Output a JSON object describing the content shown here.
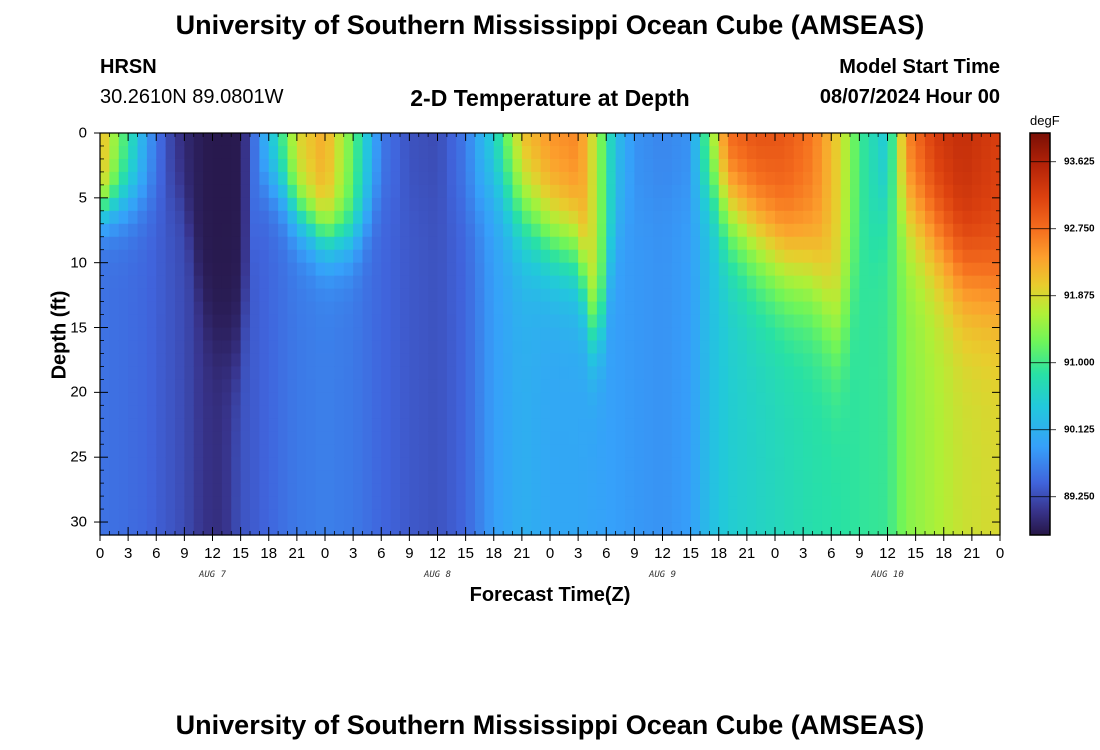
{
  "header": {
    "title": "University of Southern Mississippi Ocean Cube (AMSEAS)",
    "station_name": "HRSN",
    "station_coords": "30.2610N  89.0801W",
    "subtitle": "2-D Temperature at Depth",
    "model_start_label": "Model Start Time",
    "model_start_value": "08/07/2024 Hour 00"
  },
  "footer": {
    "title_repeat": "University of Southern Mississippi Ocean Cube (AMSEAS)"
  },
  "chart_data": {
    "type": "heatmap",
    "title": "2-D Temperature at Depth",
    "xlabel": "Forecast Time(Z)",
    "ylabel": "Depth (ft)",
    "units": "degF",
    "x_tick_labels": [
      "0",
      "3",
      "6",
      "9",
      "12",
      "15",
      "18",
      "21",
      "0",
      "3",
      "6",
      "9",
      "12",
      "15",
      "18",
      "21",
      "0",
      "3",
      "6",
      "9",
      "12",
      "15",
      "18",
      "21",
      "0",
      "3",
      "6",
      "9",
      "12",
      "15",
      "18",
      "21",
      "0"
    ],
    "x_range_hours": [
      0,
      96
    ],
    "day_labels": [
      {
        "label": "AUG 7",
        "hour": 12
      },
      {
        "label": "AUG 8",
        "hour": 36
      },
      {
        "label": "AUG 9",
        "hour": 60
      },
      {
        "label": "AUG 10",
        "hour": 84
      }
    ],
    "y_tick_labels": [
      "0",
      "5",
      "10",
      "15",
      "20",
      "25",
      "30"
    ],
    "y_range_ft": [
      0,
      31
    ],
    "colorbar": {
      "label": "degF",
      "range": [
        88.75,
        94.0
      ],
      "tick_labels": [
        "93.625",
        "92.750",
        "91.875",
        "91.000",
        "90.125",
        "89.250"
      ],
      "tick_values": [
        93.625,
        92.75,
        91.875,
        91.0,
        90.125,
        89.25
      ]
    },
    "profiles": [
      {
        "hour": 0,
        "surface": 92.2,
        "bottom": 89.55,
        "mixed_depth": 6,
        "grad": 2
      },
      {
        "hour": 3,
        "surface": 90.9,
        "bottom": 89.5,
        "mixed_depth": 5,
        "grad": 3
      },
      {
        "hour": 5,
        "surface": 89.9,
        "bottom": 89.45,
        "mixed_depth": 5,
        "grad": 3
      },
      {
        "hour": 7,
        "surface": 89.3,
        "bottom": 89.35,
        "mixed_depth": 5,
        "grad": 3
      },
      {
        "hour": 9,
        "surface": 88.95,
        "bottom": 89.25,
        "mixed_depth": 5,
        "grad": 3
      },
      {
        "hour": 11,
        "surface": 88.8,
        "bottom": 89.05,
        "mixed_depth": 14,
        "grad": 4
      },
      {
        "hour": 13,
        "surface": 88.78,
        "bottom": 89.0,
        "mixed_depth": 17,
        "grad": 4
      },
      {
        "hour": 15,
        "surface": 88.8,
        "bottom": 89.3,
        "mixed_depth": 17,
        "grad": 5
      },
      {
        "hour": 17,
        "surface": 89.8,
        "bottom": 89.4,
        "mixed_depth": 4,
        "grad": 3
      },
      {
        "hour": 19,
        "surface": 90.8,
        "bottom": 89.5,
        "mixed_depth": 4,
        "grad": 3
      },
      {
        "hour": 21,
        "surface": 91.9,
        "bottom": 89.6,
        "mixed_depth": 6,
        "grad": 3
      },
      {
        "hour": 24,
        "surface": 92.3,
        "bottom": 89.65,
        "mixed_depth": 8,
        "grad": 3
      },
      {
        "hour": 27,
        "surface": 91.2,
        "bottom": 89.6,
        "mixed_depth": 8,
        "grad": 3
      },
      {
        "hour": 30,
        "surface": 89.6,
        "bottom": 89.45,
        "mixed_depth": 5,
        "grad": 3
      },
      {
        "hour": 33,
        "surface": 89.3,
        "bottom": 89.35,
        "mixed_depth": 5,
        "grad": 3
      },
      {
        "hour": 36,
        "surface": 89.25,
        "bottom": 89.3,
        "mixed_depth": 5,
        "grad": 3
      },
      {
        "hour": 39,
        "surface": 89.6,
        "bottom": 89.45,
        "mixed_depth": 6,
        "grad": 3
      },
      {
        "hour": 42,
        "surface": 90.6,
        "bottom": 89.9,
        "mixed_depth": 4,
        "grad": 4
      },
      {
        "hour": 45,
        "surface": 92.2,
        "bottom": 90.1,
        "mixed_depth": 6,
        "grad": 5
      },
      {
        "hour": 48,
        "surface": 92.5,
        "bottom": 90.0,
        "mixed_depth": 8,
        "grad": 5
      },
      {
        "hour": 51,
        "surface": 92.6,
        "bottom": 90.0,
        "mixed_depth": 9,
        "grad": 5
      },
      {
        "hour": 53,
        "surface": 91.6,
        "bottom": 89.95,
        "mixed_depth": 17,
        "grad": 4
      },
      {
        "hour": 55,
        "surface": 90.3,
        "bottom": 89.9,
        "mixed_depth": 8,
        "grad": 4
      },
      {
        "hour": 57,
        "surface": 89.8,
        "bottom": 89.85,
        "mixed_depth": 5,
        "grad": 3
      },
      {
        "hour": 60,
        "surface": 89.7,
        "bottom": 89.8,
        "mixed_depth": 5,
        "grad": 3
      },
      {
        "hour": 63,
        "surface": 89.8,
        "bottom": 89.9,
        "mixed_depth": 5,
        "grad": 3
      },
      {
        "hour": 65,
        "surface": 91.4,
        "bottom": 90.3,
        "mixed_depth": 4,
        "grad": 4
      },
      {
        "hour": 67,
        "surface": 92.9,
        "bottom": 90.5,
        "mixed_depth": 6,
        "grad": 5
      },
      {
        "hour": 70,
        "surface": 93.1,
        "bottom": 90.6,
        "mixed_depth": 8,
        "grad": 6
      },
      {
        "hour": 73,
        "surface": 93.0,
        "bottom": 90.7,
        "mixed_depth": 10,
        "grad": 6
      },
      {
        "hour": 76,
        "surface": 92.7,
        "bottom": 90.8,
        "mixed_depth": 11,
        "grad": 6
      },
      {
        "hour": 79,
        "surface": 91.9,
        "bottom": 90.85,
        "mixed_depth": 16,
        "grad": 6
      },
      {
        "hour": 81,
        "surface": 91.0,
        "bottom": 90.9,
        "mixed_depth": 10,
        "grad": 5
      },
      {
        "hour": 84,
        "surface": 90.4,
        "bottom": 90.95,
        "mixed_depth": 5,
        "grad": 4
      },
      {
        "hour": 86,
        "surface": 92.6,
        "bottom": 91.4,
        "mixed_depth": 6,
        "grad": 5
      },
      {
        "hour": 89,
        "surface": 93.3,
        "bottom": 91.6,
        "mixed_depth": 8,
        "grad": 6
      },
      {
        "hour": 92,
        "surface": 93.45,
        "bottom": 91.8,
        "mixed_depth": 11,
        "grad": 6
      },
      {
        "hour": 96,
        "surface": 93.2,
        "bottom": 91.9,
        "mixed_depth": 12,
        "grad": 6
      }
    ]
  }
}
